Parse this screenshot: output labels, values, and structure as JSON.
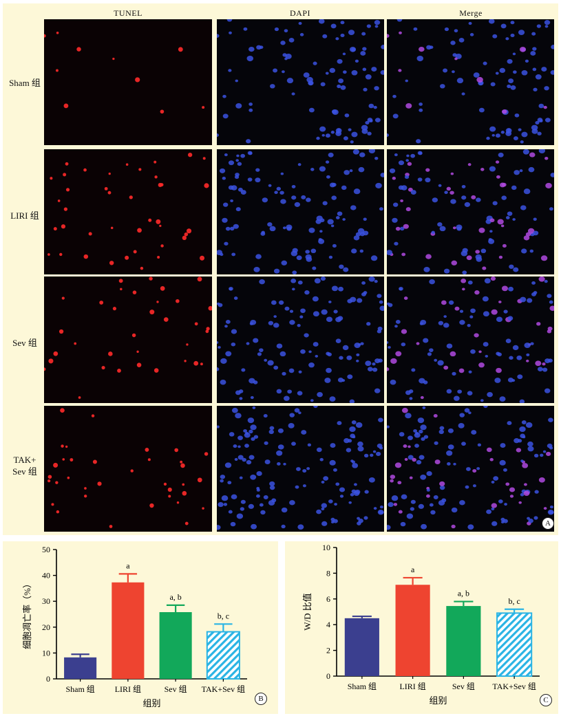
{
  "panel_a": {
    "columns": [
      "TUNEL",
      "DAPI",
      "Merge"
    ],
    "rows": [
      "Sham 组",
      "LIRI 组",
      "Sev 组",
      "TAK+\nSev 组"
    ],
    "panel_letter": "A",
    "stain_colors": {
      "tunel": "#ff2a2a",
      "dapi": "#3b52e0",
      "merge": "#b04ae0",
      "background": "#05050a"
    }
  },
  "chart_data": [
    {
      "type": "bar",
      "panel_letter": "B",
      "categories": [
        "Sham 组",
        "LIRI 组",
        "Sev 组",
        "TAK+Sev 组"
      ],
      "values": [
        8.3,
        37.3,
        25.8,
        18.2
      ],
      "errors": [
        1.2,
        3.3,
        2.7,
        3.0
      ],
      "annotations": [
        "",
        "a",
        "a, b",
        "b, c"
      ],
      "colors": [
        "#3b3f8f",
        "#ee4430",
        "#12a85a",
        "#2ab4e4"
      ],
      "hatched": [
        false,
        false,
        false,
        true
      ],
      "ylabel": "细胞凋亡率（%）",
      "xlabel": "组别",
      "ylim": [
        0,
        50
      ],
      "yticks": [
        0,
        10,
        20,
        30,
        40,
        50
      ]
    },
    {
      "type": "bar",
      "panel_letter": "C",
      "categories": [
        "Sham 组",
        "LIRI 组",
        "Sev 组",
        "TAK+Sev 组"
      ],
      "values": [
        4.5,
        7.1,
        5.45,
        4.9
      ],
      "errors": [
        0.15,
        0.55,
        0.35,
        0.3
      ],
      "annotations": [
        "",
        "a",
        "a, b",
        "b, c"
      ],
      "colors": [
        "#3b3f8f",
        "#ee4430",
        "#12a85a",
        "#2ab4e4"
      ],
      "hatched": [
        false,
        false,
        false,
        true
      ],
      "ylabel": "W/D 比值",
      "xlabel": "组别",
      "ylim": [
        0,
        10
      ],
      "yticks": [
        0,
        2,
        4,
        6,
        8,
        10
      ]
    }
  ]
}
